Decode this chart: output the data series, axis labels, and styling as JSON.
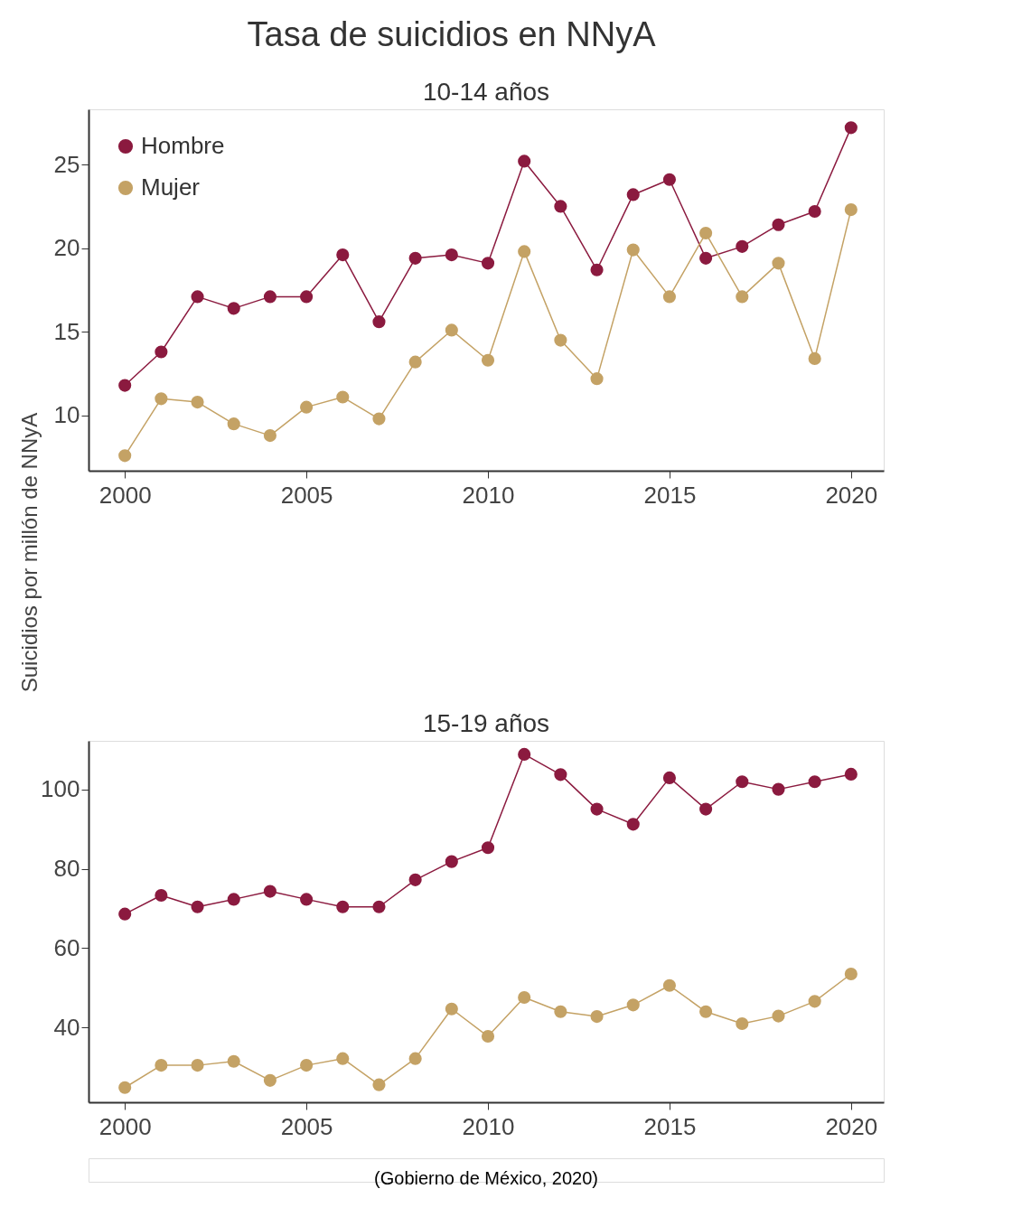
{
  "chart_data": [
    {
      "type": "line",
      "title": "Tasa de suicidios en NNyA",
      "subtitle": "10-14 años",
      "ylabel": "Suicidios por millón de NNyA",
      "x": [
        2000,
        2001,
        2002,
        2003,
        2004,
        2005,
        2006,
        2007,
        2008,
        2009,
        2010,
        2011,
        2012,
        2013,
        2014,
        2015,
        2016,
        2017,
        2018,
        2019,
        2020
      ],
      "series": [
        {
          "name": "Hombre",
          "color": "#8b1a3f",
          "values": [
            11.8,
            13.8,
            17.1,
            16.4,
            17.1,
            17.1,
            19.6,
            15.6,
            19.4,
            19.6,
            19.1,
            25.2,
            22.5,
            18.7,
            23.2,
            24.1,
            19.4,
            20.1,
            21.4,
            22.2,
            27.2
          ]
        },
        {
          "name": "Mujer",
          "color": "#c4a265",
          "values": [
            7.6,
            11.0,
            10.8,
            9.5,
            8.8,
            10.5,
            11.1,
            9.8,
            13.2,
            15.1,
            13.3,
            19.8,
            14.5,
            12.2,
            19.9,
            17.1,
            20.9,
            17.1,
            19.1,
            13.4,
            22.3
          ]
        }
      ],
      "xlim": [
        1999.0,
        2020.9
      ],
      "xticks": [
        2000,
        2005,
        2010,
        2015,
        2020
      ],
      "ylim": [
        6.7,
        28.3
      ],
      "yticks": [
        10,
        15,
        20,
        25
      ],
      "marker": "circle",
      "line_style": "solid",
      "grid": false,
      "legend": "top left"
    },
    {
      "type": "line",
      "subtitle": "15-19 años",
      "x": [
        2000,
        2001,
        2002,
        2003,
        2004,
        2005,
        2006,
        2007,
        2008,
        2009,
        2010,
        2011,
        2012,
        2013,
        2014,
        2015,
        2016,
        2017,
        2018,
        2019,
        2020
      ],
      "series": [
        {
          "color": "#8b1a3f",
          "values": [
            68.6,
            73.3,
            70.4,
            72.3,
            74.3,
            72.3,
            70.4,
            70.4,
            77.2,
            81.8,
            85.3,
            108.8,
            103.7,
            95.0,
            91.2,
            102.9,
            95.0,
            101.9,
            100,
            101.9,
            103.8
          ]
        },
        {
          "color": "#c4a265",
          "values": [
            24.9,
            30.5,
            30.5,
            31.5,
            26.7,
            30.5,
            32.2,
            25.6,
            32.2,
            44.7,
            37.8,
            47.6,
            44.0,
            42.8,
            45.7,
            50.6,
            44.0,
            41.0,
            42.9,
            46.6,
            53.5
          ]
        }
      ],
      "xlim": [
        1999.0,
        2020.9
      ],
      "xticks": [
        2000,
        2005,
        2010,
        2015,
        2020
      ],
      "ylim": [
        21.2,
        112.2
      ],
      "yticks": [
        40,
        60,
        80,
        100
      ],
      "marker": "circle",
      "line_style": "solid",
      "grid": false,
      "annotations": [
        "(Gobierno de México, 2020)"
      ]
    }
  ]
}
